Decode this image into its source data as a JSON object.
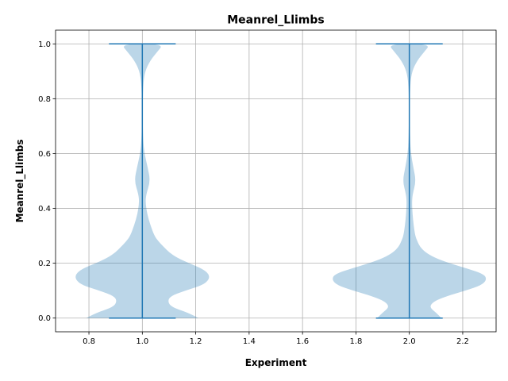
{
  "chart_data": {
    "type": "violin",
    "title": "Meanrel_Llimbs",
    "xlabel": "Experiment",
    "ylabel": "Meanrel_Llimbs",
    "xlim": [
      0.675,
      2.325
    ],
    "ylim": [
      -0.05,
      1.05
    ],
    "xticks": [
      "0.8",
      "1.0",
      "1.2",
      "1.4",
      "1.6",
      "1.8",
      "2.0",
      "2.2"
    ],
    "yticks": [
      "0.0",
      "0.2",
      "0.4",
      "0.6",
      "0.8",
      "1.0"
    ],
    "grid": true,
    "colors": {
      "body": "#1f77b4",
      "line": "#1f77b4"
    },
    "violins": [
      {
        "position": 1.0,
        "min": 0.0,
        "max": 1.0,
        "profile": [
          [
            0.0,
            0.21
          ],
          [
            0.02,
            0.17
          ],
          [
            0.04,
            0.11
          ],
          [
            0.06,
            0.095
          ],
          [
            0.08,
            0.105
          ],
          [
            0.1,
            0.16
          ],
          [
            0.12,
            0.225
          ],
          [
            0.14,
            0.25
          ],
          [
            0.16,
            0.25
          ],
          [
            0.18,
            0.225
          ],
          [
            0.2,
            0.175
          ],
          [
            0.22,
            0.13
          ],
          [
            0.24,
            0.1
          ],
          [
            0.26,
            0.08
          ],
          [
            0.28,
            0.06
          ],
          [
            0.3,
            0.045
          ],
          [
            0.34,
            0.03
          ],
          [
            0.38,
            0.018
          ],
          [
            0.42,
            0.012
          ],
          [
            0.45,
            0.014
          ],
          [
            0.5,
            0.03
          ],
          [
            0.55,
            0.02
          ],
          [
            0.6,
            0.008
          ],
          [
            0.65,
            0.003
          ],
          [
            0.75,
            0.001
          ],
          [
            0.85,
            0.003
          ],
          [
            0.9,
            0.01
          ],
          [
            0.94,
            0.03
          ],
          [
            0.97,
            0.055
          ],
          [
            1.0,
            0.08
          ]
        ]
      },
      {
        "position": 2.0,
        "min": 0.0,
        "max": 1.0,
        "profile": [
          [
            0.0,
            0.12
          ],
          [
            0.02,
            0.1
          ],
          [
            0.04,
            0.075
          ],
          [
            0.06,
            0.09
          ],
          [
            0.08,
            0.14
          ],
          [
            0.1,
            0.21
          ],
          [
            0.12,
            0.27
          ],
          [
            0.14,
            0.29
          ],
          [
            0.16,
            0.28
          ],
          [
            0.18,
            0.22
          ],
          [
            0.2,
            0.15
          ],
          [
            0.22,
            0.095
          ],
          [
            0.24,
            0.06
          ],
          [
            0.26,
            0.04
          ],
          [
            0.28,
            0.03
          ],
          [
            0.3,
            0.022
          ],
          [
            0.34,
            0.016
          ],
          [
            0.38,
            0.012
          ],
          [
            0.42,
            0.01
          ],
          [
            0.45,
            0.012
          ],
          [
            0.5,
            0.025
          ],
          [
            0.55,
            0.015
          ],
          [
            0.6,
            0.006
          ],
          [
            0.65,
            0.003
          ],
          [
            0.75,
            0.001
          ],
          [
            0.85,
            0.003
          ],
          [
            0.9,
            0.01
          ],
          [
            0.94,
            0.03
          ],
          [
            0.97,
            0.055
          ],
          [
            1.0,
            0.08
          ]
        ]
      }
    ]
  }
}
